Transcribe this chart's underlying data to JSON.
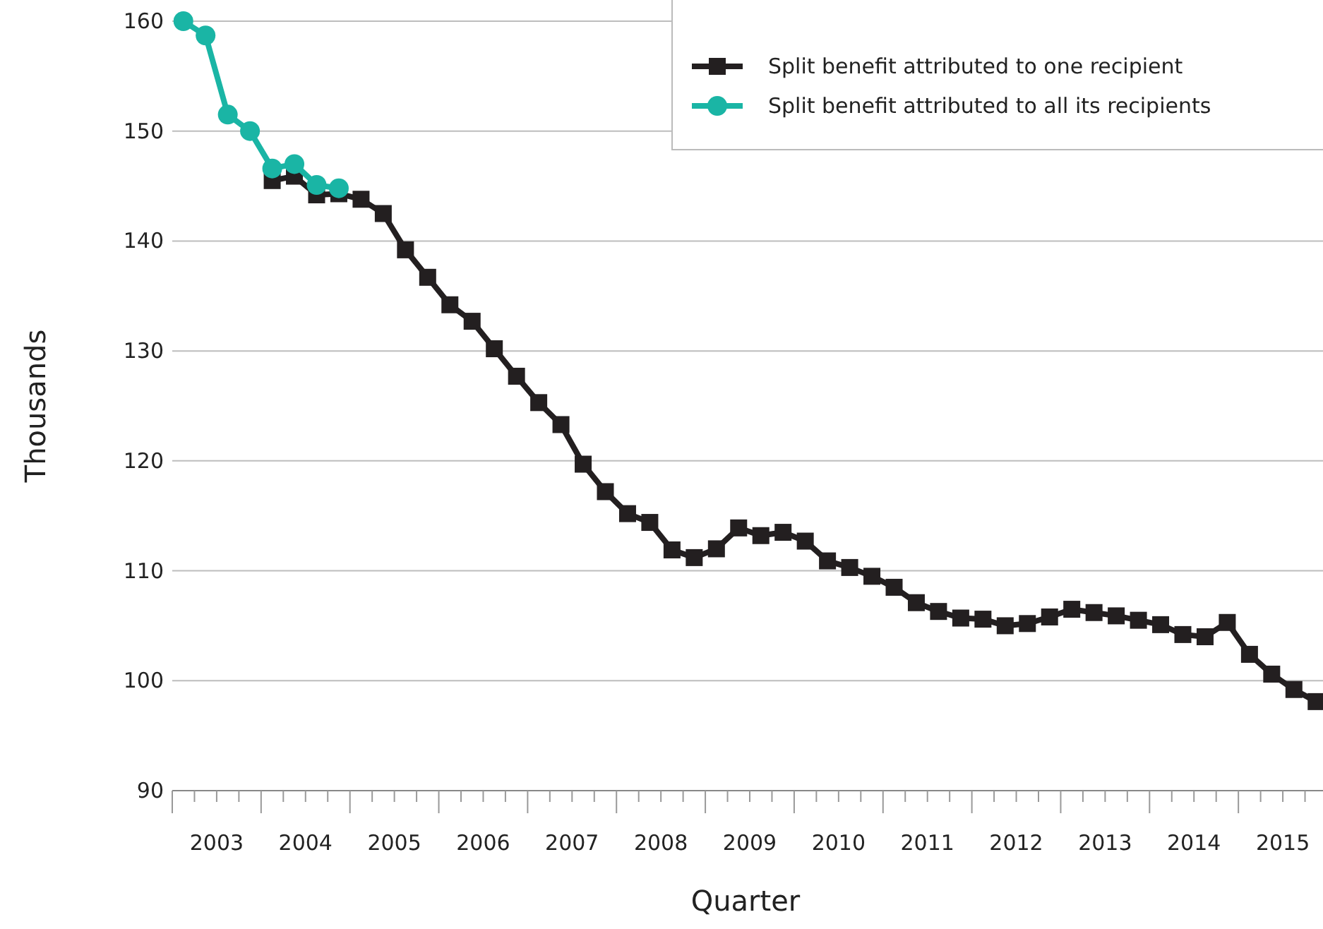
{
  "chart_data": {
    "type": "line",
    "xlabel": "Quarter",
    "ylabel": "Thousands",
    "xlim": [
      2003,
      2016
    ],
    "ylim": [
      90,
      160
    ],
    "yticks": [
      90,
      100,
      110,
      120,
      130,
      140,
      150,
      160
    ],
    "xticks": [
      {
        "value": 2003,
        "label": null
      },
      {
        "value": 2003.25,
        "label": null
      },
      {
        "value": 2003.5,
        "label": "2003"
      },
      {
        "value": 2003.75,
        "label": null
      },
      {
        "value": 2004,
        "label": null
      },
      {
        "value": 2004.25,
        "label": null
      },
      {
        "value": 2004.5,
        "label": "2004"
      },
      {
        "value": 2004.75,
        "label": null
      },
      {
        "value": 2005,
        "label": null
      },
      {
        "value": 2005.25,
        "label": null
      },
      {
        "value": 2005.5,
        "label": "2005"
      },
      {
        "value": 2005.75,
        "label": null
      },
      {
        "value": 2006,
        "label": null
      },
      {
        "value": 2006.25,
        "label": null
      },
      {
        "value": 2006.5,
        "label": "2006"
      },
      {
        "value": 2006.75,
        "label": null
      },
      {
        "value": 2007,
        "label": null
      },
      {
        "value": 2007.25,
        "label": null
      },
      {
        "value": 2007.5,
        "label": "2007"
      },
      {
        "value": 2007.75,
        "label": null
      },
      {
        "value": 2008,
        "label": null
      },
      {
        "value": 2008.25,
        "label": null
      },
      {
        "value": 2008.5,
        "label": "2008"
      },
      {
        "value": 2008.75,
        "label": null
      },
      {
        "value": 2009,
        "label": null
      },
      {
        "value": 2009.25,
        "label": null
      },
      {
        "value": 2009.5,
        "label": "2009"
      },
      {
        "value": 2009.75,
        "label": null
      },
      {
        "value": 2010,
        "label": null
      },
      {
        "value": 2010.25,
        "label": null
      },
      {
        "value": 2010.5,
        "label": "2010"
      },
      {
        "value": 2010.75,
        "label": null
      },
      {
        "value": 2011,
        "label": null
      },
      {
        "value": 2011.25,
        "label": null
      },
      {
        "value": 2011.5,
        "label": "2011"
      },
      {
        "value": 2011.75,
        "label": null
      },
      {
        "value": 2012,
        "label": null
      },
      {
        "value": 2012.25,
        "label": null
      },
      {
        "value": 2012.5,
        "label": "2012"
      },
      {
        "value": 2012.75,
        "label": null
      },
      {
        "value": 2013,
        "label": null
      },
      {
        "value": 2013.25,
        "label": null
      },
      {
        "value": 2013.5,
        "label": "2013"
      },
      {
        "value": 2013.75,
        "label": null
      },
      {
        "value": 2014,
        "label": null
      },
      {
        "value": 2014.25,
        "label": null
      },
      {
        "value": 2014.5,
        "label": "2014"
      },
      {
        "value": 2014.75,
        "label": null
      },
      {
        "value": 2015,
        "label": null
      },
      {
        "value": 2015.25,
        "label": null
      },
      {
        "value": 2015.5,
        "label": "2015"
      },
      {
        "value": 2015.75,
        "label": null
      }
    ],
    "grid": "y",
    "legend": "top right",
    "line_style": "solid",
    "series": [
      {
        "name": "Split benefit attributed to one recipient",
        "color": "#231f20",
        "marker": "square",
        "x": [
          2004.125,
          2004.375,
          2004.625,
          2004.875,
          2005.125,
          2005.375,
          2005.625,
          2005.875,
          2006.125,
          2006.375,
          2006.625,
          2006.875,
          2007.125,
          2007.375,
          2007.625,
          2007.875,
          2008.125,
          2008.375,
          2008.625,
          2008.875,
          2009.125,
          2009.375,
          2009.625,
          2009.875,
          2010.125,
          2010.375,
          2010.625,
          2010.875,
          2011.125,
          2011.375,
          2011.625,
          2011.875,
          2012.125,
          2012.375,
          2012.625,
          2012.875,
          2013.125,
          2013.375,
          2013.625,
          2013.875,
          2014.125,
          2014.375,
          2014.625,
          2014.875,
          2015.125,
          2015.375,
          2015.625,
          2015.875
        ],
        "values": [
          145.5,
          145.9,
          144.2,
          144.3,
          143.8,
          142.5,
          139.2,
          136.7,
          134.2,
          132.7,
          130.2,
          127.7,
          125.3,
          123.3,
          119.7,
          117.2,
          115.2,
          114.4,
          111.9,
          111.2,
          112.0,
          113.9,
          113.2,
          113.5,
          112.7,
          110.9,
          110.3,
          109.5,
          108.5,
          107.1,
          106.3,
          105.7,
          105.6,
          105.0,
          105.2,
          105.8,
          106.5,
          106.2,
          105.9,
          105.5,
          105.1,
          104.2,
          104.0,
          105.3,
          102.4,
          100.6,
          99.2,
          98.1
        ]
      },
      {
        "name": "Split benefit attributed to all its recipients",
        "color": "#1ab5a5",
        "marker": "circle",
        "x": [
          2003.125,
          2003.375,
          2003.625,
          2003.875,
          2004.125,
          2004.375,
          2004.625,
          2004.875
        ],
        "values": [
          160.0,
          158.7,
          151.5,
          150.0,
          146.6,
          147.0,
          145.1,
          144.8
        ]
      }
    ]
  }
}
